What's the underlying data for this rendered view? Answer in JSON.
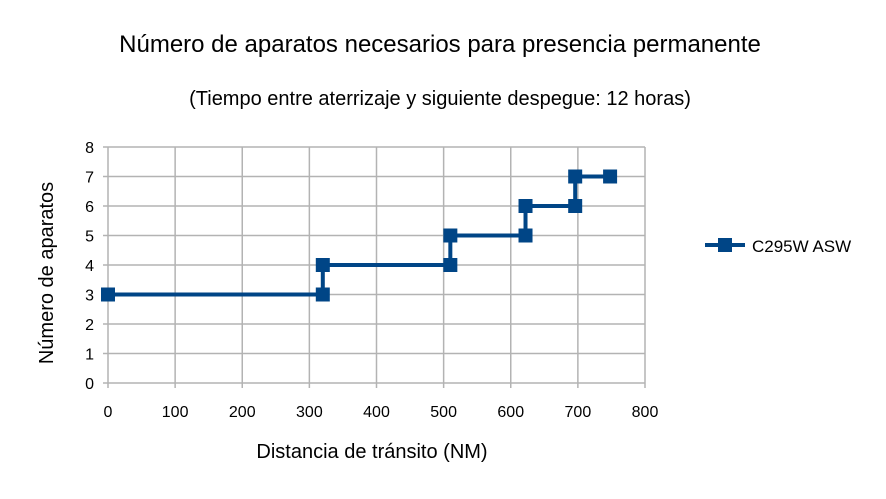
{
  "chart_data": {
    "type": "line",
    "title": "Número de aparatos necesarios para presencia permanente",
    "subtitle": "(Tiempo entre aterrizaje y siguiente despegue: 12 horas)",
    "xlabel": "Distancia de tránsito (NM)",
    "ylabel": "Número de aparatos",
    "xlim": [
      0,
      800
    ],
    "ylim": [
      0,
      8
    ],
    "xticks": [
      "0",
      "100",
      "200",
      "300",
      "400",
      "500",
      "600",
      "700",
      "800"
    ],
    "yticks": [
      "0",
      "1",
      "2",
      "3",
      "4",
      "5",
      "6",
      "7",
      "8"
    ],
    "grid": true,
    "legend_position": "right",
    "series": [
      {
        "name": "C295W ASW",
        "color": "#004586",
        "marker": "square",
        "x": [
          0,
          320,
          320,
          510,
          510,
          622,
          622,
          696,
          696,
          748
        ],
        "y": [
          3,
          3,
          4,
          4,
          5,
          5,
          6,
          6,
          7,
          7
        ]
      }
    ]
  }
}
